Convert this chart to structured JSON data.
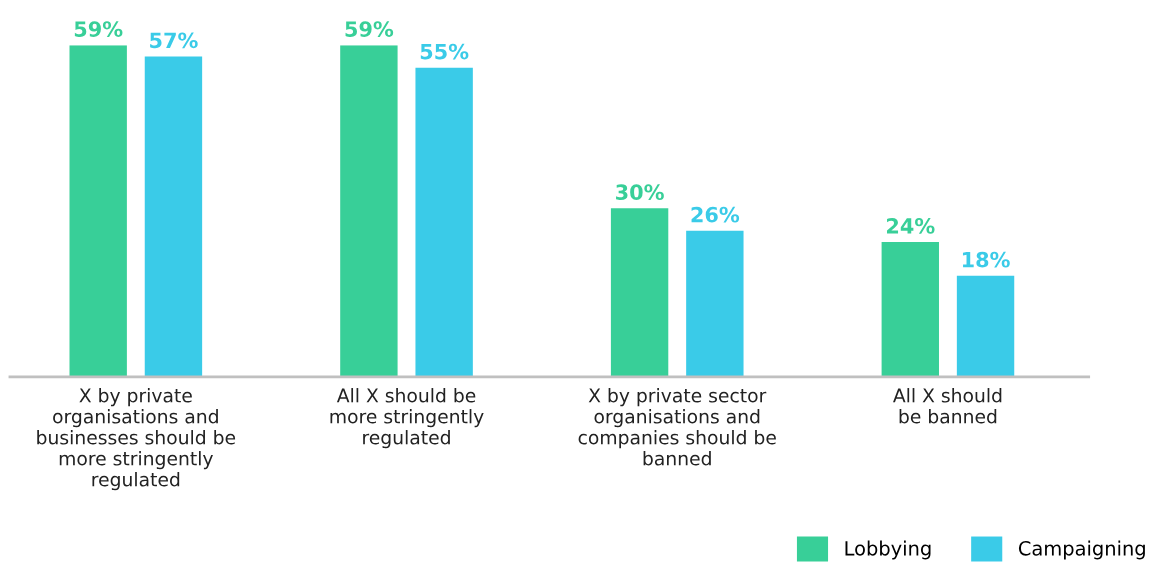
{
  "chart_data": {
    "type": "bar",
    "categories": [
      "X by private\norganisations and\nbusinesses should be\nmore stringently\nregulated",
      "All X should be\nmore stringently\nregulated",
      "X by private sector\norganisations and\ncompanies should be\nbanned",
      "All X should\nbe banned"
    ],
    "series": [
      {
        "name": "Lobbying",
        "color": "#38cf98",
        "values": [
          59,
          59,
          30,
          24
        ],
        "value_labels": [
          "59%",
          "59%",
          "30%",
          "24%"
        ]
      },
      {
        "name": "Campaigning",
        "color": "#3acbe8",
        "values": [
          57,
          55,
          26,
          18
        ],
        "value_labels": [
          "57%",
          "55%",
          "26%",
          "18%"
        ]
      }
    ],
    "grid": false,
    "legend": "bottom right",
    "tick_labels": "x"
  }
}
